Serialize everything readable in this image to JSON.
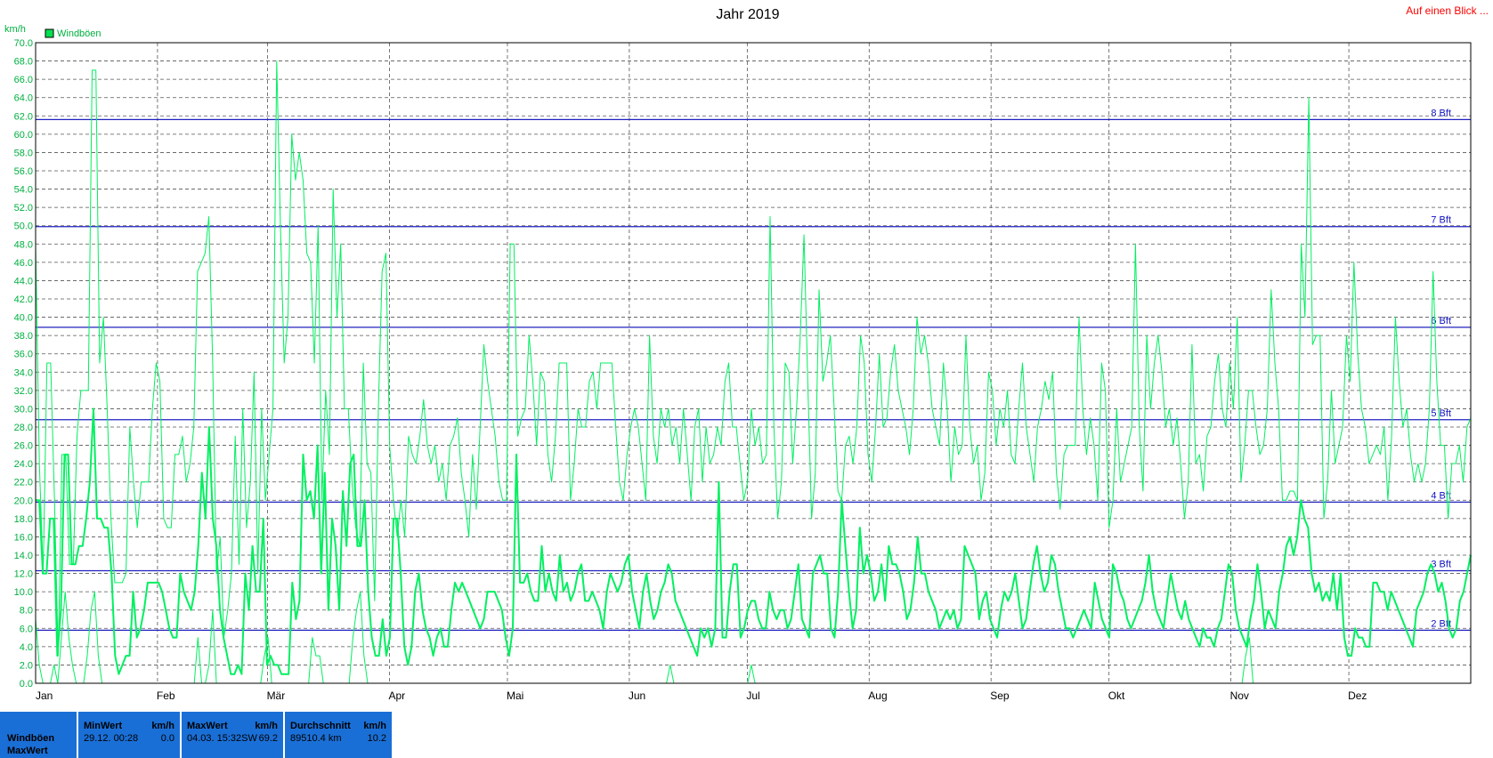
{
  "title": "Jahr 2019",
  "overview_link": "Auf einen Blick ...",
  "chart_data": {
    "type": "line",
    "title": "Jahr 2019",
    "ylabel": "km/h",
    "xlabel": "",
    "ylim": [
      0,
      70
    ],
    "yticks": [
      "0.0",
      "2.0",
      "4.0",
      "6.0",
      "8.0",
      "10.0",
      "12.0",
      "14.0",
      "16.0",
      "18.0",
      "20.0",
      "22.0",
      "24.0",
      "26.0",
      "28.0",
      "30.0",
      "32.0",
      "34.0",
      "36.0",
      "38.0",
      "40.0",
      "42.0",
      "44.0",
      "46.0",
      "48.0",
      "50.0",
      "52.0",
      "54.0",
      "56.0",
      "58.0",
      "60.0",
      "62.0",
      "64.0",
      "66.0",
      "68.0",
      "70.0"
    ],
    "months": [
      "Jan",
      "Feb",
      "Mär",
      "Apr",
      "Mai",
      "Jun",
      "Jul",
      "Aug",
      "Sep",
      "Okt",
      "Nov",
      "Dez"
    ],
    "month_start_days": [
      0,
      31,
      59,
      90,
      120,
      151,
      181,
      212,
      243,
      273,
      304,
      334
    ],
    "days_in_year": 365,
    "grid": true,
    "legend": {
      "position": "top-left",
      "entries": [
        {
          "name": "Windböen",
          "color": "#00e050"
        }
      ]
    },
    "beaufort": [
      {
        "label": "2 Bft",
        "value": 5.8
      },
      {
        "label": "3 Bft",
        "value": 12.3
      },
      {
        "label": "4 Bft",
        "value": 19.8
      },
      {
        "label": "5 Bft",
        "value": 28.8
      },
      {
        "label": "6 Bft",
        "value": 38.9
      },
      {
        "label": "7 Bft",
        "value": 49.9
      },
      {
        "label": "8 Bft",
        "value": 61.6
      }
    ],
    "series_color": "#00f060",
    "series": [
      {
        "role": "max",
        "values": [
          48,
          24,
          12,
          35,
          35,
          20,
          3,
          25,
          25,
          13,
          13,
          27,
          32,
          32,
          32,
          67,
          67,
          35,
          40,
          30,
          18,
          11,
          11,
          11,
          12,
          28,
          22,
          17,
          22,
          22,
          22,
          30,
          35,
          33,
          18,
          17,
          17,
          25,
          25,
          27,
          22,
          24,
          28,
          45,
          46,
          47,
          51,
          35,
          12,
          16,
          5,
          8,
          12,
          27,
          13,
          30,
          17,
          22,
          34,
          12,
          30,
          20,
          25,
          30,
          68,
          50,
          35,
          40,
          60,
          55,
          58,
          55,
          47,
          46,
          35,
          50,
          20,
          32,
          25,
          54,
          40,
          48,
          30,
          30,
          22,
          17,
          15,
          35,
          24,
          23,
          9,
          30,
          45,
          47,
          26,
          20,
          16,
          20,
          16,
          27,
          25,
          24,
          27,
          31,
          26,
          24,
          26,
          22,
          24,
          20,
          26,
          27,
          29,
          23,
          20,
          16,
          25,
          19,
          28,
          37,
          33,
          30,
          27,
          22,
          20,
          20,
          48,
          48,
          27,
          29,
          30,
          38,
          33,
          26,
          34,
          33,
          25,
          22,
          27,
          35,
          35,
          35,
          20,
          24,
          30,
          28,
          28,
          33,
          34,
          30,
          35,
          35,
          35,
          35,
          28,
          22,
          20,
          25,
          28,
          30,
          28,
          24,
          20,
          38,
          27,
          24,
          30,
          28,
          30,
          26,
          28,
          24,
          30,
          25,
          20,
          28,
          30,
          22,
          28,
          24,
          25,
          28,
          26,
          33,
          35,
          28,
          28,
          24,
          20,
          22,
          30,
          26,
          28,
          24,
          25,
          51,
          28,
          18,
          22,
          35,
          34,
          24,
          30,
          38,
          49,
          33,
          18,
          23,
          43,
          33,
          35,
          38,
          30,
          21,
          20,
          26,
          27,
          24,
          28,
          38,
          35,
          25,
          22,
          28,
          36,
          28,
          29,
          34,
          37,
          32,
          30,
          28,
          25,
          30,
          40,
          36,
          38,
          35,
          30,
          28,
          26,
          35,
          30,
          22,
          28,
          25,
          26,
          38,
          28,
          24,
          26,
          20,
          23,
          34,
          32,
          26,
          30,
          28,
          32,
          25,
          24,
          30,
          35,
          28,
          25,
          22,
          28,
          30,
          33,
          31,
          34,
          23,
          19,
          25,
          26,
          26,
          26,
          40,
          30,
          25,
          29,
          26,
          20,
          35,
          32,
          17,
          20,
          30,
          22,
          24,
          26,
          28,
          48,
          28,
          21,
          38,
          30,
          35,
          38,
          34,
          28,
          30,
          26,
          29,
          24,
          18,
          22,
          37,
          24,
          25,
          21,
          27,
          28,
          33,
          36,
          30,
          28,
          35,
          30,
          40,
          22,
          26,
          32,
          32,
          28,
          25,
          26,
          30,
          43,
          35,
          30,
          20,
          20,
          21,
          21,
          20,
          48,
          40,
          64,
          37,
          38,
          38,
          18,
          22,
          32,
          24,
          26,
          28,
          38,
          33,
          46,
          36,
          30,
          28,
          24,
          25,
          26,
          25,
          28,
          20,
          27,
          40,
          33,
          28,
          30,
          25,
          22,
          24,
          22,
          24,
          30,
          45,
          33,
          26,
          26,
          18,
          24,
          24,
          26,
          22,
          28,
          29
        ]
      },
      {
        "role": "mean",
        "values": [
          20,
          20,
          12,
          12,
          18,
          18,
          3,
          8,
          25,
          25,
          13,
          13,
          15,
          15,
          18,
          22,
          30,
          18,
          18,
          17,
          17,
          12,
          3,
          1,
          2,
          3,
          3,
          10,
          5,
          6,
          8,
          11,
          11,
          11,
          11,
          10,
          8,
          6,
          5,
          5,
          12,
          10,
          9,
          8,
          10,
          15,
          23,
          18,
          28,
          18,
          15,
          8,
          5,
          3,
          1,
          1,
          2,
          1,
          12,
          8,
          15,
          10,
          10,
          18,
          2,
          3,
          2,
          2,
          1,
          1,
          1,
          11,
          7,
          9,
          25,
          20,
          21,
          18,
          26,
          12,
          23,
          8,
          18,
          15,
          8,
          21,
          15,
          24,
          25,
          15,
          15,
          20,
          10,
          5,
          3,
          3,
          7,
          3,
          5,
          18,
          18,
          12,
          4,
          2,
          4,
          10,
          12,
          8,
          6,
          5,
          3,
          5,
          6,
          4,
          4,
          8,
          11,
          10,
          11,
          10,
          9,
          8,
          7,
          6,
          7,
          10,
          10,
          10,
          9,
          8,
          5,
          3,
          6,
          25,
          11,
          11,
          12,
          10,
          9,
          9,
          15,
          10,
          12,
          10,
          9,
          14,
          10,
          11,
          9,
          10,
          12,
          13,
          9,
          9,
          10,
          9,
          8,
          6,
          10,
          12,
          11,
          10,
          11,
          13,
          14,
          10,
          8,
          6,
          10,
          12,
          9,
          7,
          8,
          10,
          11,
          13,
          12,
          9,
          8,
          7,
          6,
          5,
          4,
          3,
          6,
          5,
          6,
          4,
          6,
          22,
          5,
          5,
          10,
          13,
          13,
          5,
          6,
          8,
          9,
          9,
          7,
          6,
          6,
          10,
          8,
          7,
          8,
          8,
          6,
          7,
          10,
          13,
          7,
          6,
          5,
          12,
          13,
          14,
          12,
          12,
          6,
          5,
          10,
          20,
          15,
          10,
          6,
          8,
          17,
          12,
          14,
          12,
          9,
          10,
          13,
          9,
          15,
          13,
          13,
          12,
          10,
          7,
          8,
          11,
          16,
          12,
          12,
          10,
          9,
          8,
          6,
          7,
          8,
          7,
          8,
          6,
          7,
          15,
          14,
          13,
          12,
          7,
          9,
          10,
          7,
          6,
          5,
          8,
          10,
          9,
          10,
          12,
          9,
          6,
          7,
          10,
          13,
          15,
          12,
          10,
          11,
          14,
          13,
          10,
          8,
          6,
          6,
          5,
          6,
          7,
          8,
          7,
          6,
          11,
          9,
          7,
          6,
          5,
          13,
          12,
          10,
          9,
          7,
          6,
          7,
          8,
          9,
          11,
          14,
          10,
          8,
          7,
          6,
          9,
          12,
          10,
          8,
          7,
          9,
          7,
          6,
          5,
          4,
          6,
          5,
          5,
          4,
          6,
          7,
          10,
          13,
          12,
          8,
          6,
          5,
          4,
          7,
          9,
          13,
          10,
          6,
          8,
          7,
          6,
          10,
          12,
          15,
          16,
          14,
          16,
          20,
          18,
          17,
          12,
          10,
          11,
          9,
          10,
          9,
          12,
          8,
          12,
          5,
          3,
          3,
          6,
          5,
          5,
          4,
          4,
          11,
          11,
          10,
          10,
          8,
          10,
          9,
          8,
          7,
          6,
          5,
          4,
          8,
          9,
          10,
          12,
          13,
          12,
          10,
          11,
          9,
          6,
          5,
          6,
          9,
          10,
          12,
          14
        ]
      },
      {
        "role": "min",
        "values": [
          7,
          2,
          0,
          0,
          0,
          2,
          0,
          5,
          10,
          5,
          2,
          0,
          0,
          0,
          3,
          8,
          10,
          3,
          0,
          0,
          0,
          0,
          0,
          0,
          0,
          0,
          0,
          0,
          0,
          0,
          0,
          0,
          0,
          0,
          0,
          0,
          0,
          0,
          0,
          0,
          0,
          0,
          0,
          0,
          5,
          0,
          0,
          2,
          8,
          0,
          0,
          0,
          0,
          0,
          0,
          0,
          0,
          0,
          0,
          0,
          0,
          0,
          3,
          5,
          0,
          0,
          0,
          0,
          0,
          0,
          0,
          0,
          0,
          0,
          0,
          5,
          3,
          3,
          0,
          0,
          0,
          0,
          0,
          0,
          0,
          0,
          5,
          8,
          10,
          3,
          0,
          0,
          0,
          0,
          0,
          0,
          0,
          0,
          0,
          0,
          0,
          0,
          0,
          0,
          0,
          0,
          0,
          0,
          0,
          0,
          0,
          0,
          0,
          0,
          0,
          0,
          0,
          0,
          0,
          0,
          0,
          0,
          0,
          0,
          0,
          0,
          0,
          0,
          0,
          0,
          0,
          0,
          0,
          0,
          0,
          0,
          0,
          0,
          0,
          0,
          0,
          0,
          0,
          0,
          0,
          0,
          0,
          0,
          0,
          0,
          0,
          0,
          0,
          0,
          0,
          0,
          0,
          0,
          0,
          0,
          0,
          0,
          0,
          0,
          0,
          0,
          0,
          0,
          0,
          0,
          0,
          0,
          2,
          0,
          0,
          0,
          0,
          0,
          0,
          0,
          0,
          0,
          0,
          0,
          0,
          0,
          0,
          0,
          0,
          0,
          0,
          0,
          0,
          0,
          2,
          0,
          0,
          0,
          0,
          0,
          0,
          0,
          0,
          0,
          0,
          0,
          0,
          0,
          0,
          0,
          0,
          0,
          0,
          0,
          0,
          0,
          0,
          0,
          0,
          0,
          0,
          0,
          0,
          0,
          0,
          0,
          0,
          0,
          0,
          0,
          0,
          0,
          0,
          0,
          0,
          0,
          0,
          0,
          0,
          0,
          0,
          0,
          0,
          0,
          0,
          0,
          0,
          0,
          0,
          0,
          0,
          0,
          0,
          0,
          0,
          0,
          0,
          0,
          0,
          0,
          0,
          0,
          0,
          0,
          0,
          0,
          0,
          0,
          0,
          0,
          0,
          0,
          0,
          0,
          0,
          0,
          0,
          0,
          0,
          0,
          0,
          0,
          0,
          0,
          0,
          0,
          0,
          0,
          0,
          0,
          0,
          0,
          0,
          0,
          0,
          0,
          0,
          0,
          0,
          0,
          0,
          0,
          0,
          0,
          0,
          0,
          0,
          0,
          0,
          0,
          0,
          0,
          0,
          0,
          0,
          0,
          0,
          0,
          0,
          0,
          0,
          0,
          0,
          0,
          0,
          0,
          0,
          0,
          3,
          5,
          0,
          0,
          0,
          0,
          0,
          0,
          0,
          0,
          0,
          0,
          0,
          0,
          0,
          0,
          0,
          0,
          0,
          0,
          0,
          0,
          0,
          0,
          0,
          0,
          0,
          0,
          0,
          0,
          0,
          0,
          0,
          0,
          0,
          0,
          0,
          0,
          0,
          0,
          0,
          0,
          0,
          0,
          0,
          0,
          0,
          0,
          0,
          0,
          0,
          0,
          0,
          0,
          0,
          0,
          0,
          0,
          0,
          0,
          0,
          0
        ]
      }
    ]
  },
  "summary": {
    "row_labels": [
      "Windböen",
      "MaxWert"
    ],
    "columns": [
      {
        "header": "MinWert",
        "unit": "km/h",
        "when": "29.12.  00:28",
        "value": "0.0"
      },
      {
        "header": "MaxWert",
        "unit": "km/h",
        "when": "04.03.  15:32SW",
        "value": "69.2"
      },
      {
        "header": "Durchschnitt",
        "unit": "km/h",
        "when": "89510.4 km",
        "value": "10.2"
      }
    ]
  }
}
